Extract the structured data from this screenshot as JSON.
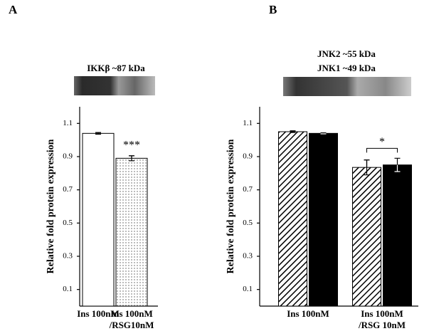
{
  "chart_data": [
    {
      "type": "bar",
      "panel_label": "A",
      "blot_labels": [
        "IKKβ ~87 kDa"
      ],
      "y_label": "Relative fold protein expression",
      "categories": [
        [
          "Ins 100nM"
        ],
        [
          "Ins 100nM",
          "/RSG10nM"
        ]
      ],
      "series": [
        {
          "color": "#000000",
          "patterns": [
            "none",
            "dots"
          ],
          "values": [
            1.04,
            0.89
          ],
          "errors": [
            0.005,
            0.015
          ]
        }
      ],
      "ylim": [
        0,
        1.2
      ],
      "yticks": [
        0.1,
        0.3,
        0.5,
        0.7,
        0.9,
        1.1
      ],
      "annotations": [
        {
          "text": "***",
          "category": 1
        }
      ]
    },
    {
      "type": "bar",
      "panel_label": "B",
      "blot_labels": [
        "JNK2 ~55 kDa",
        "JNK1 ~49 kDa"
      ],
      "y_label": "Relative fold protein expression",
      "categories": [
        [
          "Ins 100nM"
        ],
        [
          "Ins 100nM",
          "/RSG 10nM"
        ]
      ],
      "series": [
        {
          "color": "#000000",
          "pattern": "hatch",
          "values": [
            1.05,
            0.835
          ],
          "errors": [
            0.005,
            0.045
          ]
        },
        {
          "color": "#000000",
          "pattern": "solid",
          "values": [
            1.04,
            0.85
          ],
          "errors": [
            0.003,
            0.04
          ]
        }
      ],
      "ylim": [
        0,
        1.2
      ],
      "yticks": [
        0.1,
        0.3,
        0.5,
        0.7,
        0.9,
        1.1
      ],
      "annotations": [
        {
          "text": "*",
          "category": 1,
          "bracket": true
        }
      ]
    }
  ]
}
